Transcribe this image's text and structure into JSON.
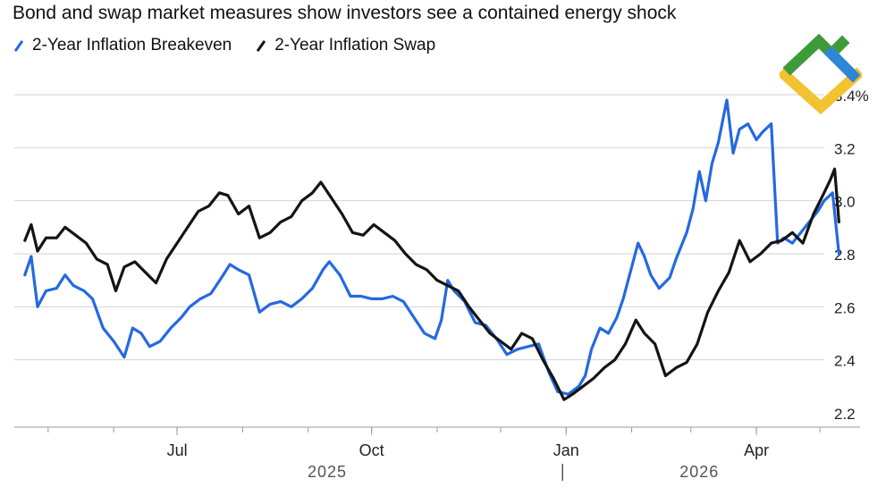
{
  "header": {
    "title": "Bond and swap market measures show investors see a contained energy shock"
  },
  "colors": {
    "breakeven": "#2469e0",
    "swap": "#141414",
    "grid": "#d2d2d2",
    "axis": "#9a9a9a",
    "logo_green": "#3f9a3a",
    "logo_blue": "#2e86d6",
    "logo_yellow": "#f2c230"
  },
  "chart_data": {
    "type": "line",
    "title": "Bond and swap market measures show investors see a contained energy shock",
    "xlabel": "",
    "ylabel": "",
    "ylim": [
      2.2,
      3.4
    ],
    "y_ticks": [
      "2.2",
      "2.4",
      "2.6",
      "2.8",
      "3.0",
      "3.2",
      "3.4%"
    ],
    "y_tick_values": [
      2.2,
      2.4,
      2.6,
      2.8,
      3.0,
      3.2,
      3.4
    ],
    "x_range": [
      "2025-04-15",
      "2026-05-20"
    ],
    "x_ticks": [
      {
        "label": "Jul",
        "date": "2025-07-01"
      },
      {
        "label": "Oct",
        "date": "2025-10-01"
      },
      {
        "label": "Jan",
        "date": "2026-01-01"
      },
      {
        "label": "Apr",
        "date": "2026-04-01"
      }
    ],
    "year_labels": [
      {
        "label": "2025",
        "date": "2025-09-10"
      },
      {
        "label": "2026",
        "date": "2026-03-05"
      }
    ],
    "grid": true,
    "legend_position": "top-left",
    "series": [
      {
        "name": "2-Year Inflation Breakeven",
        "color": "#2469e0",
        "points": [
          [
            "2025-04-20",
            2.72
          ],
          [
            "2025-04-23",
            2.79
          ],
          [
            "2025-04-26",
            2.6
          ],
          [
            "2025-04-30",
            2.66
          ],
          [
            "2025-05-05",
            2.67
          ],
          [
            "2025-05-09",
            2.72
          ],
          [
            "2025-05-13",
            2.68
          ],
          [
            "2025-05-18",
            2.66
          ],
          [
            "2025-05-22",
            2.63
          ],
          [
            "2025-05-27",
            2.52
          ],
          [
            "2025-06-01",
            2.47
          ],
          [
            "2025-06-06",
            2.41
          ],
          [
            "2025-06-10",
            2.52
          ],
          [
            "2025-06-14",
            2.5
          ],
          [
            "2025-06-18",
            2.45
          ],
          [
            "2025-06-23",
            2.47
          ],
          [
            "2025-06-28",
            2.52
          ],
          [
            "2025-07-03",
            2.56
          ],
          [
            "2025-07-07",
            2.6
          ],
          [
            "2025-07-12",
            2.63
          ],
          [
            "2025-07-17",
            2.65
          ],
          [
            "2025-07-22",
            2.71
          ],
          [
            "2025-07-26",
            2.76
          ],
          [
            "2025-07-30",
            2.74
          ],
          [
            "2025-08-04",
            2.72
          ],
          [
            "2025-08-09",
            2.58
          ],
          [
            "2025-08-14",
            2.61
          ],
          [
            "2025-08-19",
            2.62
          ],
          [
            "2025-08-24",
            2.6
          ],
          [
            "2025-08-29",
            2.63
          ],
          [
            "2025-09-03",
            2.67
          ],
          [
            "2025-09-08",
            2.74
          ],
          [
            "2025-09-11",
            2.77
          ],
          [
            "2025-09-16",
            2.72
          ],
          [
            "2025-09-21",
            2.64
          ],
          [
            "2025-09-26",
            2.64
          ],
          [
            "2025-10-01",
            2.63
          ],
          [
            "2025-10-06",
            2.63
          ],
          [
            "2025-10-11",
            2.64
          ],
          [
            "2025-10-16",
            2.62
          ],
          [
            "2025-10-21",
            2.56
          ],
          [
            "2025-10-26",
            2.5
          ],
          [
            "2025-10-31",
            2.48
          ],
          [
            "2025-11-03",
            2.55
          ],
          [
            "2025-11-06",
            2.7
          ],
          [
            "2025-11-09",
            2.66
          ],
          [
            "2025-11-14",
            2.62
          ],
          [
            "2025-11-19",
            2.54
          ],
          [
            "2025-11-24",
            2.53
          ],
          [
            "2025-11-29",
            2.48
          ],
          [
            "2025-12-04",
            2.42
          ],
          [
            "2025-12-09",
            2.44
          ],
          [
            "2025-12-14",
            2.45
          ],
          [
            "2025-12-19",
            2.46
          ],
          [
            "2025-12-24",
            2.35
          ],
          [
            "2025-12-28",
            2.28
          ],
          [
            "2026-01-02",
            2.27
          ],
          [
            "2026-01-07",
            2.3
          ],
          [
            "2026-01-10",
            2.34
          ],
          [
            "2026-01-13",
            2.44
          ],
          [
            "2026-01-17",
            2.52
          ],
          [
            "2026-01-21",
            2.5
          ],
          [
            "2026-01-25",
            2.56
          ],
          [
            "2026-01-28",
            2.63
          ],
          [
            "2026-02-01",
            2.75
          ],
          [
            "2026-02-04",
            2.84
          ],
          [
            "2026-02-07",
            2.79
          ],
          [
            "2026-02-10",
            2.72
          ],
          [
            "2026-02-14",
            2.67
          ],
          [
            "2026-02-19",
            2.71
          ],
          [
            "2026-02-22",
            2.78
          ],
          [
            "2026-02-27",
            2.88
          ],
          [
            "2026-03-02",
            2.97
          ],
          [
            "2026-03-05",
            3.11
          ],
          [
            "2026-03-08",
            3.0
          ],
          [
            "2026-03-11",
            3.14
          ],
          [
            "2026-03-14",
            3.22
          ],
          [
            "2026-03-18",
            3.38
          ],
          [
            "2026-03-21",
            3.18
          ],
          [
            "2026-03-24",
            3.27
          ],
          [
            "2026-03-28",
            3.29
          ],
          [
            "2026-04-01",
            3.23
          ],
          [
            "2026-04-04",
            3.26
          ],
          [
            "2026-04-08",
            3.29
          ],
          [
            "2026-04-11",
            2.84
          ],
          [
            "2026-04-14",
            2.86
          ],
          [
            "2026-04-18",
            2.84
          ],
          [
            "2026-04-22",
            2.88
          ],
          [
            "2026-04-26",
            2.92
          ],
          [
            "2026-04-30",
            2.96
          ],
          [
            "2026-05-03",
            3.0
          ],
          [
            "2026-05-07",
            3.03
          ],
          [
            "2026-05-10",
            2.8
          ]
        ]
      },
      {
        "name": "2-Year Inflation Swap",
        "color": "#141414",
        "points": [
          [
            "2025-04-20",
            2.85
          ],
          [
            "2025-04-23",
            2.91
          ],
          [
            "2025-04-26",
            2.81
          ],
          [
            "2025-04-30",
            2.86
          ],
          [
            "2025-05-05",
            2.86
          ],
          [
            "2025-05-09",
            2.9
          ],
          [
            "2025-05-14",
            2.87
          ],
          [
            "2025-05-19",
            2.84
          ],
          [
            "2025-05-24",
            2.78
          ],
          [
            "2025-05-29",
            2.76
          ],
          [
            "2025-06-02",
            2.66
          ],
          [
            "2025-06-06",
            2.75
          ],
          [
            "2025-06-11",
            2.77
          ],
          [
            "2025-06-16",
            2.73
          ],
          [
            "2025-06-21",
            2.69
          ],
          [
            "2025-06-26",
            2.78
          ],
          [
            "2025-07-01",
            2.84
          ],
          [
            "2025-07-06",
            2.9
          ],
          [
            "2025-07-11",
            2.96
          ],
          [
            "2025-07-16",
            2.98
          ],
          [
            "2025-07-21",
            3.03
          ],
          [
            "2025-07-25",
            3.02
          ],
          [
            "2025-07-30",
            2.95
          ],
          [
            "2025-08-04",
            2.98
          ],
          [
            "2025-08-09",
            2.86
          ],
          [
            "2025-08-14",
            2.88
          ],
          [
            "2025-08-19",
            2.92
          ],
          [
            "2025-08-24",
            2.94
          ],
          [
            "2025-08-29",
            3.0
          ],
          [
            "2025-09-03",
            3.03
          ],
          [
            "2025-09-07",
            3.07
          ],
          [
            "2025-09-12",
            3.01
          ],
          [
            "2025-09-17",
            2.95
          ],
          [
            "2025-09-22",
            2.88
          ],
          [
            "2025-09-27",
            2.87
          ],
          [
            "2025-10-02",
            2.91
          ],
          [
            "2025-10-07",
            2.88
          ],
          [
            "2025-10-12",
            2.85
          ],
          [
            "2025-10-17",
            2.8
          ],
          [
            "2025-10-22",
            2.76
          ],
          [
            "2025-10-27",
            2.74
          ],
          [
            "2025-11-01",
            2.7
          ],
          [
            "2025-11-06",
            2.68
          ],
          [
            "2025-11-11",
            2.66
          ],
          [
            "2025-11-16",
            2.6
          ],
          [
            "2025-11-21",
            2.55
          ],
          [
            "2025-11-26",
            2.5
          ],
          [
            "2025-12-01",
            2.47
          ],
          [
            "2025-12-06",
            2.44
          ],
          [
            "2025-12-11",
            2.5
          ],
          [
            "2025-12-16",
            2.48
          ],
          [
            "2025-12-21",
            2.4
          ],
          [
            "2025-12-26",
            2.33
          ],
          [
            "2025-12-31",
            2.25
          ],
          [
            "2026-01-04",
            2.27
          ],
          [
            "2026-01-09",
            2.3
          ],
          [
            "2026-01-14",
            2.33
          ],
          [
            "2026-01-19",
            2.37
          ],
          [
            "2026-01-24",
            2.4
          ],
          [
            "2026-01-29",
            2.46
          ],
          [
            "2026-02-03",
            2.55
          ],
          [
            "2026-02-07",
            2.5
          ],
          [
            "2026-02-12",
            2.46
          ],
          [
            "2026-02-17",
            2.34
          ],
          [
            "2026-02-22",
            2.37
          ],
          [
            "2026-02-27",
            2.39
          ],
          [
            "2026-03-04",
            2.46
          ],
          [
            "2026-03-09",
            2.58
          ],
          [
            "2026-03-14",
            2.66
          ],
          [
            "2026-03-19",
            2.73
          ],
          [
            "2026-03-24",
            2.85
          ],
          [
            "2026-03-29",
            2.77
          ],
          [
            "2026-04-03",
            2.8
          ],
          [
            "2026-04-08",
            2.84
          ],
          [
            "2026-04-13",
            2.85
          ],
          [
            "2026-04-18",
            2.88
          ],
          [
            "2026-04-23",
            2.84
          ],
          [
            "2026-04-28",
            2.95
          ],
          [
            "2026-05-03",
            3.03
          ],
          [
            "2026-05-06",
            3.08
          ],
          [
            "2026-05-08",
            3.12
          ],
          [
            "2026-05-10",
            2.92
          ]
        ]
      }
    ]
  }
}
